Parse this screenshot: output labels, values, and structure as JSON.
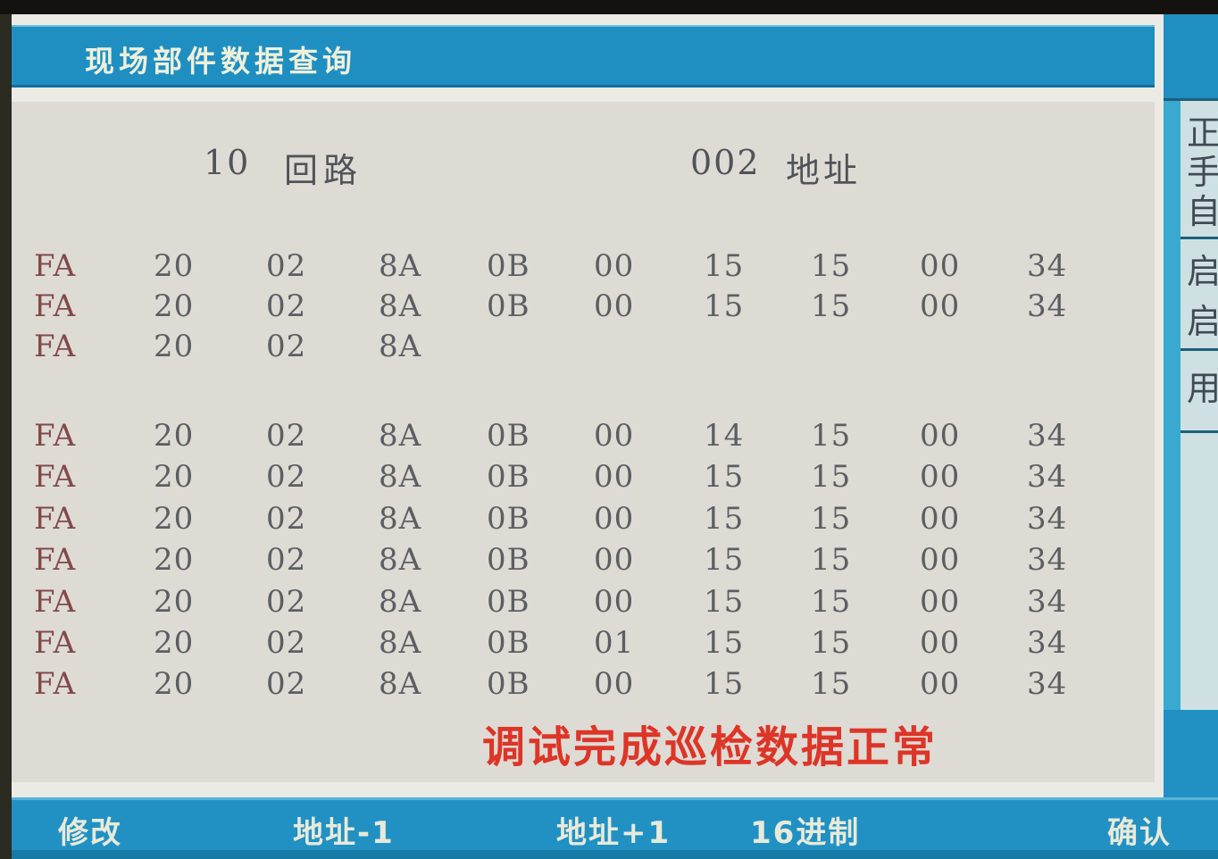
{
  "title_bar": {
    "title": "现场部件数据查询"
  },
  "query_header": {
    "loop_number": "10",
    "loop_label": "回路",
    "address_number": "002",
    "address_label": "地址"
  },
  "data_table": {
    "row_groups": [
      {
        "rows": [
          [
            "FA",
            "20",
            "02",
            "8A",
            "0B",
            "00",
            "15",
            "15",
            "00",
            "34"
          ],
          [
            "FA",
            "20",
            "02",
            "8A",
            "0B",
            "00",
            "15",
            "15",
            "00",
            "34"
          ],
          [
            "FA",
            "20",
            "02",
            "8A"
          ]
        ]
      },
      {
        "rows": [
          [
            "FA",
            "20",
            "02",
            "8A",
            "0B",
            "00",
            "14",
            "15",
            "00",
            "34"
          ],
          [
            "FA",
            "20",
            "02",
            "8A",
            "0B",
            "00",
            "15",
            "15",
            "00",
            "34"
          ],
          [
            "FA",
            "20",
            "02",
            "8A",
            "0B",
            "00",
            "15",
            "15",
            "00",
            "34"
          ],
          [
            "FA",
            "20",
            "02",
            "8A",
            "0B",
            "00",
            "15",
            "15",
            "00",
            "34"
          ],
          [
            "FA",
            "20",
            "02",
            "8A",
            "0B",
            "00",
            "15",
            "15",
            "00",
            "34"
          ],
          [
            "FA",
            "20",
            "02",
            "8A",
            "0B",
            "01",
            "15",
            "15",
            "00",
            "34"
          ],
          [
            "FA",
            "20",
            "02",
            "8A",
            "0B",
            "00",
            "15",
            "15",
            "00",
            "34"
          ]
        ]
      }
    ]
  },
  "status_message": {
    "text": "调试完成巡检数据正常"
  },
  "toolbar": {
    "items": [
      {
        "label": "修改"
      },
      {
        "label": "地址-1"
      },
      {
        "label": "地址+1"
      },
      {
        "label": "16进制"
      },
      {
        "label": "确认"
      }
    ]
  },
  "sidebar": {
    "groups": [
      {
        "lines": [
          "正",
          "手",
          "自"
        ]
      },
      {
        "lines": [
          "启",
          "启"
        ]
      },
      {
        "lines": [
          "用"
        ]
      }
    ]
  },
  "colors": {
    "bar_blue": "#1f8fc2",
    "toolbar_blue": "#2191c4",
    "sidebar_strip_cyan": "#3aa9cf",
    "sidebar_bg": "#cfe0e3",
    "screen_bg": "#dedbd5",
    "data_text_gray": "#5c5e62",
    "row_tag_maroon": "#82494a",
    "alert_red": "#dd3527",
    "bar_text_cream": "#e8ead9"
  }
}
